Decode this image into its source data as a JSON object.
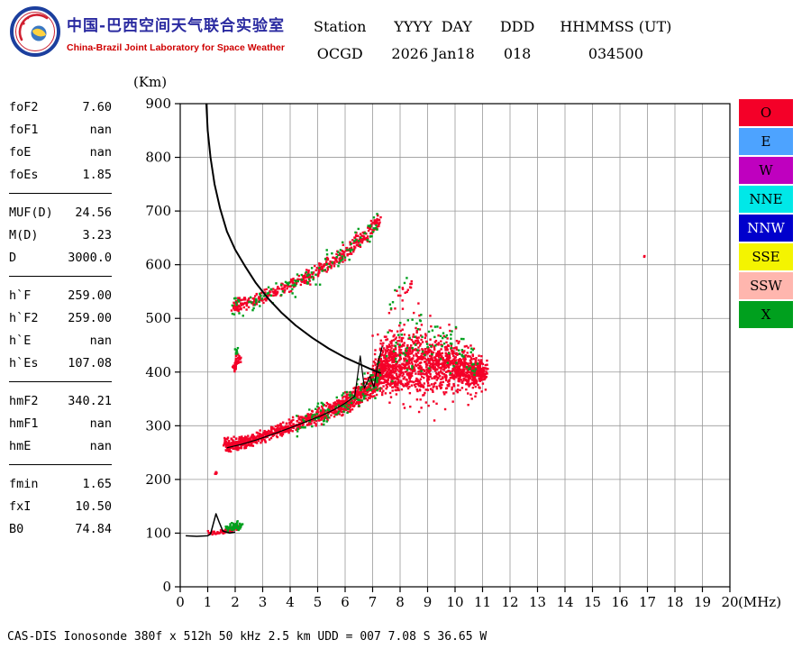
{
  "header": {
    "title_zh": "中国-巴西空间天气联合实验室",
    "title_en": "China-Brazil Joint Laboratory for Space Weather",
    "station": {
      "columns": [
        {
          "h": "Station",
          "v": "OCGD"
        },
        {
          "h": "YYYY  DAY",
          "v": "2026 Jan18"
        },
        {
          "h": "DDD",
          "v": "018"
        },
        {
          "h": "HHMMSS (UT)",
          "v": "034500"
        }
      ]
    }
  },
  "params": {
    "groups": [
      {
        "rows": [
          {
            "label": "foF2",
            "value": "7.60"
          },
          {
            "label": "foF1",
            "value": "nan"
          },
          {
            "label": "foE",
            "value": "nan"
          },
          {
            "label": "foEs",
            "value": "1.85"
          }
        ]
      },
      {
        "rows": [
          {
            "label": "MUF(D)",
            "value": "24.56"
          },
          {
            "label": "M(D)",
            "value": "3.23"
          },
          {
            "label": "D",
            "value": "3000.0"
          }
        ]
      },
      {
        "rows": [
          {
            "label": "h`F",
            "value": "259.00"
          },
          {
            "label": "h`F2",
            "value": "259.00"
          },
          {
            "label": "h`E",
            "value": "nan"
          },
          {
            "label": "h`Es",
            "value": "107.08"
          }
        ]
      },
      {
        "rows": [
          {
            "label": "hmF2",
            "value": "340.21"
          },
          {
            "label": "hmF1",
            "value": "nan"
          },
          {
            "label": "hmE",
            "value": "nan"
          }
        ]
      },
      {
        "rows": [
          {
            "label": "fmin",
            "value": "1.65"
          },
          {
            "label": "fxI",
            "value": "10.50"
          },
          {
            "label": "B0",
            "value": "74.84"
          }
        ]
      }
    ]
  },
  "legend": {
    "items": [
      {
        "label": "O",
        "color": "#f40028",
        "text": "#000000"
      },
      {
        "label": "E",
        "color": "#4da3ff",
        "text": "#000000"
      },
      {
        "label": "W",
        "color": "#bf00bf",
        "text": "#000000"
      },
      {
        "label": "NNE",
        "color": "#00e8e8",
        "text": "#000000"
      },
      {
        "label": "NNW",
        "color": "#0000cc",
        "text": "#ffffff"
      },
      {
        "label": "SSE",
        "color": "#f4f400",
        "text": "#000000"
      },
      {
        "label": "SSW",
        "color": "#ffb6ae",
        "text": "#000000"
      },
      {
        "label": "X",
        "color": "#00a01e",
        "text": "#000000"
      }
    ]
  },
  "footer": {
    "text": "CAS-DIS Ionosonde 380f x 512h 50 kHz 2.5 km UDD = 007 7.08 S 36.65 W"
  },
  "chart_data": {
    "type": "scatter",
    "title": "",
    "xlabel": "(MHz)",
    "ylabel": "(Km)",
    "xlim": [
      0,
      20
    ],
    "ylim": [
      0,
      900
    ],
    "x_ticks": [
      0,
      1,
      2,
      3,
      4,
      5,
      6,
      7,
      8,
      9,
      10,
      11,
      12,
      13,
      14,
      15,
      16,
      17,
      18,
      19,
      20
    ],
    "y_ticks": [
      0,
      100,
      200,
      300,
      400,
      500,
      600,
      700,
      800,
      900
    ],
    "grid": true,
    "legend_position": "right-outside",
    "series_colors": {
      "O": "#f40028",
      "X": "#00a01e"
    },
    "clusters": [
      {
        "name": "f-trace-o-echo",
        "c": "O",
        "seed": 7,
        "n": 1050,
        "fj": 0.18,
        "path": [
          [
            1.65,
            263
          ],
          [
            2.1,
            267
          ],
          [
            2.6,
            273
          ],
          [
            3.2,
            284
          ],
          [
            3.8,
            295
          ],
          [
            4.4,
            306
          ],
          [
            5.0,
            318
          ],
          [
            5.6,
            331
          ],
          [
            6.1,
            344
          ],
          [
            6.5,
            356
          ],
          [
            6.9,
            372
          ],
          [
            7.15,
            390
          ],
          [
            7.4,
            415
          ]
        ],
        "hw": [
          18,
          13,
          13,
          14,
          15,
          16,
          18,
          20,
          22,
          25,
          30,
          36,
          42
        ]
      },
      {
        "name": "spread-f-blob-o-echo",
        "c": "O",
        "seed": 11,
        "n": 1500,
        "fj": 0.5,
        "tail": 0.18,
        "path": [
          [
            7.2,
            400
          ],
          [
            7.7,
            412
          ],
          [
            8.2,
            420
          ],
          [
            8.8,
            418
          ],
          [
            9.4,
            412
          ],
          [
            10.0,
            407
          ],
          [
            10.6,
            402
          ],
          [
            11.0,
            398
          ]
        ],
        "hw": [
          42,
          58,
          66,
          64,
          56,
          46,
          34,
          20
        ]
      },
      {
        "name": "second-hop-o-echo",
        "c": "O",
        "seed": 23,
        "n": 430,
        "fj": 0.2,
        "path": [
          [
            1.95,
            522
          ],
          [
            2.5,
            530
          ],
          [
            3.1,
            541
          ],
          [
            3.8,
            556
          ],
          [
            4.5,
            574
          ],
          [
            5.2,
            594
          ],
          [
            5.8,
            615
          ],
          [
            6.3,
            636
          ],
          [
            6.8,
            658
          ],
          [
            7.25,
            685
          ]
        ],
        "hw": [
          16,
          13,
          13,
          14,
          15,
          16,
          17,
          17,
          16,
          13
        ]
      },
      {
        "name": "second-hop-x-echo",
        "c": "X",
        "seed": 31,
        "n": 120,
        "fj": 0.25,
        "path": [
          [
            1.95,
            522
          ],
          [
            2.5,
            530
          ],
          [
            3.1,
            541
          ],
          [
            3.8,
            556
          ],
          [
            4.5,
            574
          ],
          [
            5.2,
            594
          ],
          [
            5.8,
            615
          ],
          [
            6.3,
            636
          ],
          [
            6.8,
            658
          ],
          [
            7.25,
            688
          ]
        ],
        "hw": [
          30,
          26,
          26,
          27,
          28,
          29,
          30,
          30,
          28,
          24
        ]
      },
      {
        "name": "f-trace-x-echo",
        "c": "X",
        "seed": 41,
        "n": 110,
        "fj": 0.2,
        "path": [
          [
            4.2,
            302
          ],
          [
            5.0,
            320
          ],
          [
            5.8,
            336
          ],
          [
            6.4,
            352
          ],
          [
            6.9,
            372
          ],
          [
            7.3,
            400
          ]
        ],
        "hw": [
          24,
          26,
          28,
          32,
          40,
          48
        ]
      },
      {
        "name": "spread-f-x-echo",
        "c": "X",
        "seed": 43,
        "n": 90,
        "fj": 0.4,
        "path": [
          [
            7.4,
            425
          ],
          [
            8.1,
            448
          ],
          [
            8.8,
            455
          ],
          [
            9.5,
            446
          ],
          [
            10.2,
            430
          ],
          [
            10.8,
            415
          ]
        ],
        "hw": [
          52,
          62,
          66,
          60,
          48,
          34
        ]
      },
      {
        "name": "small-cluster-o-echo",
        "c": "O",
        "seed": 53,
        "n": 45,
        "fj": 0.12,
        "path": [
          [
            1.95,
            408
          ],
          [
            2.05,
            418
          ],
          [
            2.18,
            428
          ]
        ],
        "hw": [
          12,
          13,
          12
        ]
      },
      {
        "name": "small-cluster-x-echo",
        "c": "X",
        "seed": 59,
        "n": 10,
        "fj": 0.1,
        "path": [
          [
            2.0,
            436
          ],
          [
            2.1,
            442
          ]
        ],
        "hw": [
          7,
          7
        ]
      },
      {
        "name": "es-layer-o-echo",
        "c": "O",
        "seed": 61,
        "n": 80,
        "fj": 0.15,
        "path": [
          [
            1.05,
            100
          ],
          [
            1.45,
            102
          ],
          [
            1.8,
            106
          ],
          [
            2.15,
            112
          ]
        ],
        "hw": [
          5,
          5,
          7,
          8
        ]
      },
      {
        "name": "es-layer-x-echo",
        "c": "X",
        "seed": 67,
        "n": 60,
        "fj": 0.15,
        "path": [
          [
            1.7,
            107
          ],
          [
            1.95,
            112
          ],
          [
            2.25,
            116
          ]
        ],
        "hw": [
          7,
          9,
          9
        ]
      },
      {
        "name": "isolated-o-dot",
        "c": "O",
        "seed": 71,
        "n": 3,
        "fj": 0.05,
        "path": [
          [
            16.88,
            614
          ],
          [
            16.92,
            616
          ]
        ],
        "hw": [
          2,
          2
        ]
      },
      {
        "name": "above-blob-o-specks",
        "c": "O",
        "seed": 73,
        "n": 16,
        "fj": 0.3,
        "path": [
          [
            7.6,
            520
          ],
          [
            8.0,
            545
          ],
          [
            8.5,
            565
          ]
        ],
        "hw": [
          16,
          20,
          16
        ]
      },
      {
        "name": "above-blob-x-specks",
        "c": "X",
        "seed": 79,
        "n": 7,
        "fj": 0.3,
        "path": [
          [
            7.5,
            515
          ],
          [
            8.3,
            580
          ]
        ],
        "hw": [
          10,
          12
        ]
      },
      {
        "name": "low-left-o-speck",
        "c": "O",
        "seed": 83,
        "n": 6,
        "fj": 0.08,
        "path": [
          [
            1.25,
            210
          ],
          [
            1.35,
            214
          ]
        ],
        "hw": [
          5,
          5
        ]
      }
    ],
    "lines": [
      {
        "name": "electron-density-profile",
        "w": 2,
        "points": [
          [
            0.95,
            900
          ],
          [
            1.0,
            850
          ],
          [
            1.1,
            800
          ],
          [
            1.25,
            750
          ],
          [
            1.45,
            705
          ],
          [
            1.7,
            662
          ],
          [
            2.0,
            628
          ],
          [
            2.35,
            598
          ],
          [
            2.75,
            566
          ],
          [
            3.2,
            537
          ],
          [
            3.7,
            510
          ],
          [
            4.2,
            487
          ],
          [
            4.8,
            464
          ],
          [
            5.4,
            444
          ],
          [
            6.0,
            427
          ],
          [
            6.6,
            413
          ],
          [
            7.0,
            404
          ],
          [
            7.3,
            398
          ]
        ]
      },
      {
        "name": "scaled-height-trace",
        "w": 1.2,
        "points": [
          [
            1.7,
            259
          ],
          [
            2.2,
            265
          ],
          [
            2.8,
            274
          ],
          [
            3.4,
            285
          ],
          [
            4.0,
            296
          ],
          [
            4.6,
            308
          ],
          [
            5.1,
            318
          ],
          [
            5.6,
            330
          ],
          [
            6.0,
            342
          ],
          [
            6.35,
            355
          ],
          [
            6.55,
            430
          ],
          [
            6.7,
            370
          ],
          [
            6.9,
            392
          ],
          [
            7.05,
            372
          ],
          [
            7.2,
            418
          ],
          [
            7.35,
            448
          ]
        ]
      },
      {
        "name": "e-region-baseline",
        "w": 1.5,
        "points": [
          [
            0.2,
            95
          ],
          [
            0.6,
            94
          ],
          [
            1.0,
            95
          ],
          [
            1.1,
            98
          ],
          [
            1.3,
            136
          ],
          [
            1.42,
            120
          ],
          [
            1.55,
            104
          ],
          [
            1.8,
            100
          ],
          [
            2.0,
            102
          ]
        ]
      }
    ]
  }
}
